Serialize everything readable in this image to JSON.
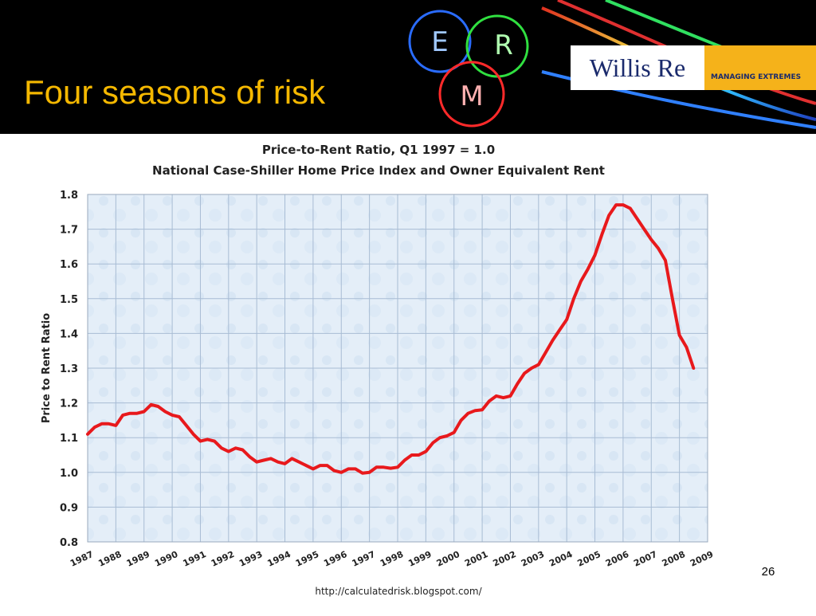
{
  "header": {
    "title": "Four seasons of risk",
    "erm": [
      "E",
      "R",
      "M"
    ],
    "logo": "Willis Re",
    "tagline": "MANAGING EXTREMES"
  },
  "chart_data": {
    "type": "line",
    "title": "Price-to-Rent Ratio, Q1 1997 = 1.0",
    "subtitle": "National Case-Shiller Home Price Index and Owner Equivalent Rent",
    "y_label": "Price to Rent Ratio",
    "color": "#e8191c",
    "grid": true,
    "x": [
      1987,
      1987.25,
      1987.5,
      1987.75,
      1988,
      1988.25,
      1988.5,
      1988.75,
      1989,
      1989.25,
      1989.5,
      1989.75,
      1990,
      1990.25,
      1990.5,
      1990.75,
      1991,
      1991.25,
      1991.5,
      1991.75,
      1992,
      1992.25,
      1992.5,
      1992.75,
      1993,
      1993.25,
      1993.5,
      1993.75,
      1994,
      1994.25,
      1994.5,
      1994.75,
      1995,
      1995.25,
      1995.5,
      1995.75,
      1996,
      1996.25,
      1996.5,
      1996.75,
      1997,
      1997.25,
      1997.5,
      1997.75,
      1998,
      1998.25,
      1998.5,
      1998.75,
      1999,
      1999.25,
      1999.5,
      1999.75,
      2000,
      2000.25,
      2000.5,
      2000.75,
      2001,
      2001.25,
      2001.5,
      2001.75,
      2002,
      2002.25,
      2002.5,
      2002.75,
      2003,
      2003.25,
      2003.5,
      2003.75,
      2004,
      2004.25,
      2004.5,
      2004.75,
      2005,
      2005.25,
      2005.5,
      2005.75,
      2006,
      2006.25,
      2006.5,
      2006.75,
      2007,
      2007.25,
      2007.5,
      2007.75,
      2008,
      2008.25,
      2008.5
    ],
    "values": [
      1.11,
      1.13,
      1.14,
      1.14,
      1.135,
      1.165,
      1.17,
      1.17,
      1.175,
      1.195,
      1.19,
      1.175,
      1.165,
      1.16,
      1.135,
      1.11,
      1.09,
      1.095,
      1.09,
      1.07,
      1.06,
      1.07,
      1.065,
      1.045,
      1.03,
      1.035,
      1.04,
      1.03,
      1.025,
      1.04,
      1.03,
      1.02,
      1.01,
      1.02,
      1.02,
      1.005,
      1.0,
      1.01,
      1.01,
      0.998,
      1.0,
      1.015,
      1.015,
      1.012,
      1.015,
      1.035,
      1.05,
      1.05,
      1.06,
      1.085,
      1.1,
      1.105,
      1.115,
      1.15,
      1.17,
      1.178,
      1.18,
      1.205,
      1.22,
      1.215,
      1.22,
      1.255,
      1.285,
      1.3,
      1.31,
      1.345,
      1.38,
      1.41,
      1.44,
      1.5,
      1.55,
      1.585,
      1.625,
      1.685,
      1.74,
      1.77,
      1.77,
      1.76,
      1.73,
      1.7,
      1.67,
      1.645,
      1.61,
      1.5,
      1.395,
      1.36,
      1.3
    ],
    "xlim": [
      1987,
      2009
    ],
    "xticks": [
      1987,
      1988,
      1989,
      1990,
      1991,
      1992,
      1993,
      1994,
      1995,
      1996,
      1997,
      1998,
      1999,
      2000,
      2001,
      2002,
      2003,
      2004,
      2005,
      2006,
      2007,
      2008,
      2009
    ],
    "ylim": [
      0.8,
      1.8
    ],
    "yticks": [
      0.8,
      0.9,
      {
        "value": 1,
        "label": "1.0"
      },
      1.1,
      1.2,
      1.3,
      1.4,
      1.5,
      1.6,
      1.7,
      1.8
    ]
  },
  "source": "http://calculatedrisk.blogspot.com/",
  "page_number": "26"
}
